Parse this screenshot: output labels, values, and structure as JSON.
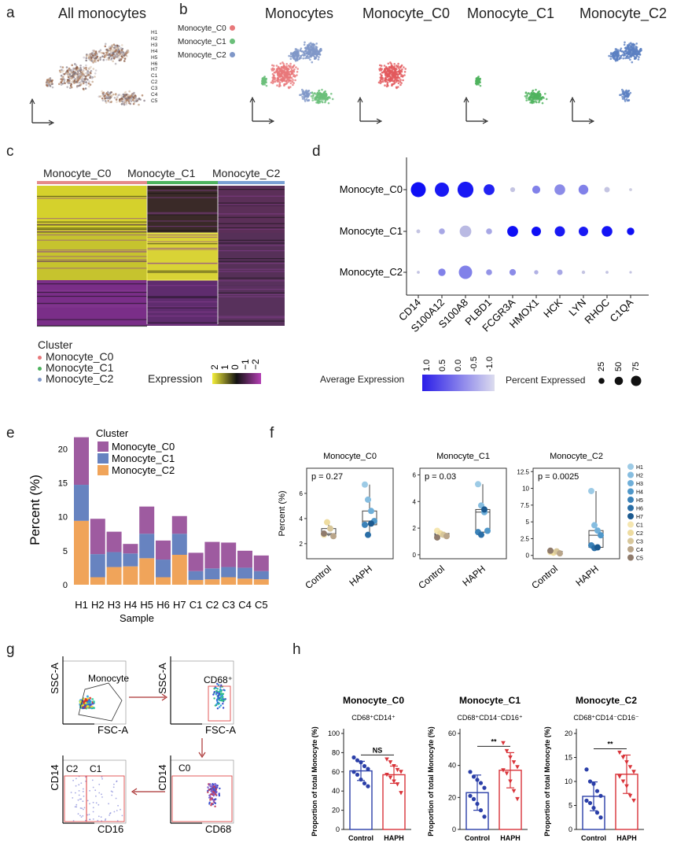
{
  "panel_labels": [
    "a",
    "b",
    "c",
    "d",
    "e",
    "f",
    "g",
    "h"
  ],
  "panel_a": {
    "title": "All monocytes",
    "legend": [
      "H1",
      "H2",
      "H3",
      "H4",
      "H5",
      "H6",
      "H7",
      "C1",
      "C2",
      "C3",
      "C4",
      "C5"
    ]
  },
  "panel_b": {
    "titles": [
      "Monocytes",
      "Monocyte_C0",
      "Monocyte_C1",
      "Monocyte_C2"
    ],
    "legend": [
      {
        "label": "Monocyte_C0",
        "color": "#e8787a"
      },
      {
        "label": "Monocyte_C1",
        "color": "#6bbf7a"
      },
      {
        "label": "Monocyte_C2",
        "color": "#7f97c8"
      }
    ]
  },
  "panel_c": {
    "column_titles": [
      "Monocyte_C0",
      "Monocyte_C1",
      "Monocyte_C2"
    ],
    "legend_title": "Cluster",
    "legend_items": [
      "Monocyte_C0",
      "Monocyte_C1",
      "Monocyte_C2"
    ],
    "expression_label": "Expression",
    "expression_ticks": [
      "2",
      "1",
      "0",
      "−1",
      "−2"
    ]
  },
  "panel_d": {
    "rows": [
      "Monocyte_C0",
      "Monocyte_C1",
      "Monocyte_C2"
    ],
    "genes": [
      "CD14",
      "S100A12",
      "S100A8",
      "PLBD1",
      "FCGR3A",
      "HMOX1",
      "HCK",
      "LYN",
      "RHOC",
      "C1QA"
    ],
    "avg_expr_label": "Average  Expression",
    "avg_expr_ticks": [
      "1.0",
      "0.5",
      "0.0",
      "-0.5",
      "-1.0"
    ],
    "pct_label": "Percent Expressed",
    "pct_ticks": [
      "25",
      "50",
      "75"
    ],
    "dots": [
      {
        "row": "Monocyte_C0",
        "pct": [
          75,
          68,
          85,
          40,
          8,
          22,
          38,
          32,
          10,
          3
        ],
        "expr": [
          1.0,
          0.9,
          0.9,
          0.8,
          -0.9,
          -0.2,
          -0.3,
          -0.2,
          -0.9,
          -1.0
        ]
      },
      {
        "row": "Monocyte_C1",
        "pct": [
          5,
          12,
          45,
          12,
          40,
          30,
          35,
          30,
          38,
          18
        ],
        "expr": [
          -0.9,
          -0.6,
          -0.8,
          -0.6,
          1.0,
          1.0,
          0.9,
          0.9,
          0.95,
          1.0
        ]
      },
      {
        "row": "Monocyte_C2",
        "pct": [
          3,
          18,
          60,
          12,
          14,
          6,
          10,
          4,
          3,
          2
        ],
        "expr": [
          -0.9,
          -0.2,
          -0.2,
          -0.4,
          -0.3,
          -0.7,
          -0.6,
          -0.9,
          -0.9,
          -0.9
        ]
      }
    ]
  },
  "chart_data": [
    {
      "type": "bar",
      "panel": "e",
      "categories": [
        "H1",
        "H2",
        "H3",
        "H4",
        "H5",
        "H6",
        "H7",
        "C1",
        "C2",
        "C3",
        "C4",
        "C5"
      ],
      "series": [
        {
          "name": "Monocyte_C0",
          "color": "#9e5ba0",
          "values": [
            7.0,
            5.2,
            3.0,
            1.4,
            4.0,
            2.8,
            2.6,
            2.7,
            3.9,
            3.6,
            2.5,
            2.3
          ]
        },
        {
          "name": "Monocyte_C1",
          "color": "#6783c0",
          "values": [
            5.3,
            3.4,
            2.2,
            1.9,
            3.6,
            2.6,
            3.1,
            1.3,
            1.6,
            1.5,
            1.6,
            1.2
          ]
        },
        {
          "name": "Monocyte_C2",
          "color": "#f0a45a",
          "values": [
            9.4,
            1.1,
            2.6,
            2.7,
            3.9,
            1.1,
            4.4,
            0.7,
            0.8,
            1.1,
            0.9,
            0.8
          ]
        }
      ],
      "ylabel": "Percent (%)",
      "xlabel": "Sample",
      "legend_title": "Cluster",
      "ylim": [
        0,
        22
      ],
      "yticks": [
        0,
        5,
        10,
        15,
        20
      ]
    },
    {
      "type": "boxplot",
      "panel": "f",
      "ylabel": "Percent (%)",
      "groups": [
        "Control",
        "HAPH"
      ],
      "legend": [
        {
          "label": "H1",
          "color": "#9dcbe6"
        },
        {
          "label": "H2",
          "color": "#86bde0"
        },
        {
          "label": "H3",
          "color": "#6fafd9"
        },
        {
          "label": "H4",
          "color": "#4f97c9"
        },
        {
          "label": "H5",
          "color": "#3b82b8"
        },
        {
          "label": "H6",
          "color": "#2a6ea6"
        },
        {
          "label": "H7",
          "color": "#1c5a90"
        },
        {
          "label": "C1",
          "color": "#f5e6b0"
        },
        {
          "label": "C2",
          "color": "#eedca0"
        },
        {
          "label": "C3",
          "color": "#d8c79a"
        },
        {
          "label": "C4",
          "color": "#b9a58a"
        },
        {
          "label": "C5",
          "color": "#8f7b6c"
        }
      ],
      "subplots": [
        {
          "title": "Monocyte_C0",
          "pvalue": "p = 0.27",
          "yticks": [
            2,
            4,
            6
          ],
          "ylim": [
            0.8,
            8
          ],
          "control": [
            2.7,
            3.7,
            3.2,
            2.6,
            2.8
          ],
          "haph": [
            6.7,
            5.5,
            4.6,
            3.8,
            3.5,
            2.7,
            3.6
          ]
        },
        {
          "title": "Monocyte_C1",
          "pvalue": "p = 0.03",
          "yticks": [
            0,
            2,
            4,
            6
          ],
          "ylim": [
            -0.3,
            6.5
          ],
          "control": [
            1.8,
            1.6,
            1.5,
            1.4,
            1.3
          ],
          "haph": [
            5.3,
            3.7,
            3.2,
            1.8,
            1.7,
            1.5,
            3.4
          ]
        },
        {
          "title": "Monocyte_C2",
          "pvalue": "p = 0.0025",
          "yticks": [
            0.0,
            2.5,
            5.0,
            7.5,
            10.0,
            12.5
          ],
          "ylim": [
            -0.5,
            13
          ],
          "control": [
            0.5,
            0.4,
            0.6,
            0.3,
            0.7
          ],
          "haph": [
            9.6,
            4.5,
            3.7,
            3.0,
            1.5,
            1.1,
            1.2
          ]
        }
      ]
    },
    {
      "type": "bar",
      "panel": "h",
      "ylabel": "Proportion of total Monocyte (%)",
      "categories": [
        "Control",
        "HAPH"
      ],
      "subplots": [
        {
          "title": "Monocyte_C0",
          "subtitle": "CD68⁺CD14⁺",
          "sig": "NS",
          "values": [
            61,
            57
          ],
          "errors": [
            10,
            9
          ],
          "ylim": [
            0,
            100
          ],
          "yticks": [
            0,
            20,
            40,
            60,
            80,
            100
          ],
          "points_control": [
            75,
            72,
            70,
            66,
            63,
            60,
            57,
            52,
            48,
            45
          ],
          "points_haph": [
            73,
            70,
            66,
            62,
            60,
            57,
            54,
            50,
            47,
            38
          ]
        },
        {
          "title": "Monocyte_C1",
          "subtitle": "CD68⁺CD14⁻CD16⁺",
          "sig": "**",
          "values": [
            23,
            37
          ],
          "errors": [
            11,
            11
          ],
          "ylim": [
            0,
            60
          ],
          "yticks": [
            0,
            20,
            40,
            60
          ],
          "points_control": [
            36,
            33,
            31,
            29,
            26,
            21,
            19,
            16,
            12,
            8
          ],
          "points_haph": [
            54,
            49,
            45,
            42,
            39,
            37,
            35,
            30,
            24,
            19
          ]
        },
        {
          "title": "Monocyte_C2",
          "subtitle": "CD68⁺CD14⁻CD16⁻",
          "sig": "**",
          "values": [
            6.9,
            11.5
          ],
          "errors": [
            3.0,
            4.0
          ],
          "ylim": [
            0,
            20
          ],
          "yticks": [
            0,
            5,
            10,
            15,
            20
          ],
          "points_control": [
            12.5,
            10,
            9.5,
            8,
            7,
            6,
            5.5,
            4.5,
            3.5,
            2.5
          ],
          "points_haph": [
            16,
            15,
            14,
            13,
            12,
            11,
            10,
            9,
            7,
            6
          ]
        }
      ]
    }
  ],
  "panel_g": {
    "plots": [
      {
        "gate": "Monocyte",
        "xlabel": "FSC-A",
        "ylabel": "SSC-A"
      },
      {
        "gate": "CD68⁺",
        "xlabel": "FSC-A",
        "ylabel": "SSC-A"
      },
      {
        "gate": "C0",
        "xlabel": "CD68",
        "ylabel": "CD14"
      },
      {
        "gates": [
          "C2",
          "C1"
        ],
        "xlabel": "CD16",
        "ylabel": "CD14"
      }
    ]
  }
}
